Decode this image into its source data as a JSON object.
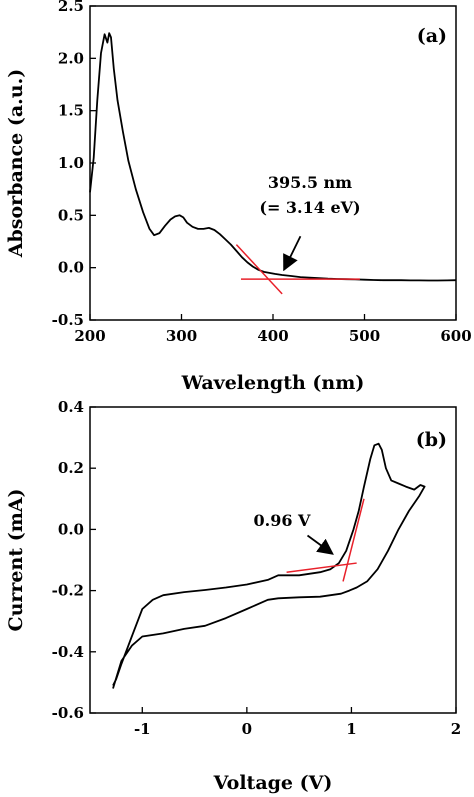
{
  "chart_data": [
    {
      "type": "line",
      "panel_label": "(a)",
      "xlabel": "Wavelength (nm)",
      "ylabel": "Absorbance (a.u.)",
      "xlim": [
        200,
        600
      ],
      "ylim": [
        -0.5,
        2.5
      ],
      "x_ticks": [
        200,
        300,
        400,
        500,
        600
      ],
      "y_ticks": [
        -0.5,
        0.0,
        0.5,
        1.0,
        1.5,
        2.0,
        2.5
      ],
      "y_tick_labels": [
        "-0.5",
        "0.0",
        "0.5",
        "1.0",
        "1.5",
        "2.0",
        "2.5"
      ],
      "series": [
        {
          "color": "#000000",
          "x": [
            200,
            204,
            208,
            212,
            216,
            219,
            221,
            223,
            226,
            230,
            236,
            242,
            250,
            258,
            265,
            270,
            276,
            282,
            288,
            293,
            298,
            302,
            306,
            312,
            318,
            324,
            330,
            336,
            342,
            348,
            354,
            360,
            366,
            372,
            378,
            384,
            390,
            396,
            402,
            410,
            420,
            430,
            440,
            450,
            460,
            470,
            480,
            490,
            500,
            510,
            520,
            530,
            540,
            550,
            560,
            570,
            580,
            590,
            600
          ],
          "y": [
            0.72,
            1.05,
            1.6,
            2.05,
            2.23,
            2.15,
            2.24,
            2.2,
            1.9,
            1.6,
            1.3,
            1.02,
            0.75,
            0.53,
            0.37,
            0.31,
            0.33,
            0.4,
            0.46,
            0.49,
            0.5,
            0.48,
            0.43,
            0.39,
            0.37,
            0.37,
            0.38,
            0.36,
            0.32,
            0.27,
            0.22,
            0.16,
            0.1,
            0.05,
            0.01,
            -0.02,
            -0.04,
            -0.05,
            -0.06,
            -0.07,
            -0.08,
            -0.09,
            -0.095,
            -0.1,
            -0.105,
            -0.108,
            -0.11,
            -0.112,
            -0.115,
            -0.118,
            -0.12,
            -0.12,
            -0.12,
            -0.122,
            -0.122,
            -0.123,
            -0.123,
            -0.122,
            -0.12
          ]
        }
      ],
      "tangent_lines": [
        {
          "color": "#e8202a",
          "x": [
            360,
            410
          ],
          "y": [
            0.22,
            -0.25
          ]
        },
        {
          "color": "#e8202a",
          "x": [
            365,
            495
          ],
          "y": [
            -0.11,
            -0.11
          ]
        }
      ],
      "annotation": {
        "line1": "395.5 nm",
        "line2": "(= 3.14 eV)",
        "arrow_from": [
          430,
          0.3
        ],
        "arrow_to": [
          412,
          -0.02
        ]
      }
    },
    {
      "type": "line",
      "panel_label": "(b)",
      "xlabel": "Voltage (V)",
      "ylabel": "Current (mA)",
      "xlim": [
        -1.5,
        2.0
      ],
      "ylim": [
        -0.6,
        0.4
      ],
      "x_ticks": [
        -1,
        0,
        1,
        2
      ],
      "y_ticks": [
        -0.6,
        -0.4,
        -0.2,
        0.0,
        0.2,
        0.4
      ],
      "y_tick_labels": [
        "-0.6",
        "-0.4",
        "-0.2",
        "0.0",
        "0.2",
        "0.4"
      ],
      "series": [
        {
          "color": "#000000",
          "x": [
            -1.28,
            -1.25,
            -1.2,
            -1.1,
            -1.0,
            -0.9,
            -0.8,
            -0.6,
            -0.4,
            -0.2,
            0.0,
            0.2,
            0.3,
            0.5,
            0.7,
            0.8,
            0.88,
            0.95,
            1.02,
            1.07,
            1.12,
            1.18,
            1.22,
            1.26,
            1.29,
            1.33,
            1.38,
            1.45,
            1.52,
            1.6,
            1.66,
            1.7,
            1.65,
            1.55,
            1.45,
            1.35,
            1.25,
            1.15,
            1.05,
            0.98,
            0.9,
            0.7,
            0.5,
            0.3,
            0.2,
            0.0,
            -0.2,
            -0.4,
            -0.6,
            -0.8,
            -1.0,
            -1.1,
            -1.2,
            -1.28
          ],
          "y": [
            -0.51,
            -0.49,
            -0.44,
            -0.35,
            -0.26,
            -0.23,
            -0.215,
            -0.205,
            -0.198,
            -0.19,
            -0.18,
            -0.165,
            -0.15,
            -0.15,
            -0.14,
            -0.13,
            -0.11,
            -0.07,
            0.0,
            0.06,
            0.14,
            0.23,
            0.275,
            0.28,
            0.26,
            0.2,
            0.16,
            0.15,
            0.14,
            0.13,
            0.145,
            0.14,
            0.11,
            0.06,
            0.0,
            -0.07,
            -0.13,
            -0.17,
            -0.19,
            -0.2,
            -0.21,
            -0.22,
            -0.222,
            -0.225,
            -0.23,
            -0.26,
            -0.29,
            -0.315,
            -0.325,
            -0.34,
            -0.35,
            -0.38,
            -0.43,
            -0.52
          ]
        }
      ],
      "tangent_lines": [
        {
          "color": "#e8202a",
          "x": [
            0.38,
            1.05
          ],
          "y": [
            -0.14,
            -0.11
          ]
        },
        {
          "color": "#e8202a",
          "x": [
            0.92,
            1.12
          ],
          "y": [
            -0.17,
            0.1
          ]
        }
      ],
      "annotation": {
        "line1": "0.96 V",
        "arrow_from": [
          0.58,
          -0.02
        ],
        "arrow_to": [
          0.82,
          -0.08
        ]
      }
    }
  ]
}
